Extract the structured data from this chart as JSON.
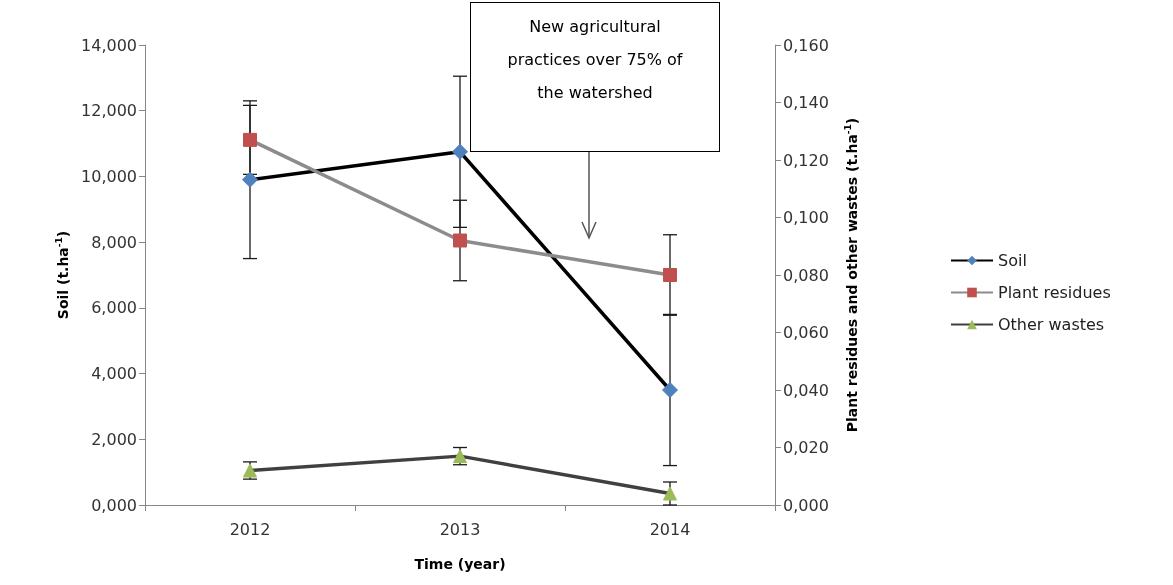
{
  "chart_data": {
    "type": "line",
    "xlabel": "Time (year)",
    "ylabel": "Soil (t.ha$^{-1}$)",
    "y2label": "Plant residues and other wastes (t.ha$^{-1}$)",
    "categories": [
      "2012",
      "2013",
      "2014"
    ],
    "series": [
      {
        "name": "Soil",
        "color": "#000000",
        "colors": [
          "#4f81bd",
          "#4f81bd",
          "#4f81bd"
        ],
        "marker": "diamond",
        "values": [
          9.9,
          10.75,
          3.5
        ],
        "errors": [
          2.4,
          2.3,
          2.3
        ]
      },
      {
        "name": "Plant residues",
        "color": "#8c8c8c",
        "colors": [
          "#c0504d",
          "#c0504d",
          "#c0504d"
        ],
        "marker": "square",
        "axis": "y2",
        "values": [
          0.127,
          0.092,
          0.08
        ],
        "errors": [
          0.012,
          0.014,
          0.014
        ]
      },
      {
        "name": "Other wastes",
        "color": "#404040",
        "colors": [
          "#9bbb59",
          "#9bbb59",
          "#9bbb59"
        ],
        "marker": "triangle",
        "axis": "y2",
        "values": [
          0.012,
          0.017,
          0.004
        ],
        "errors": [
          0.003,
          0.003,
          0.004
        ]
      }
    ],
    "ylim": [
      0,
      14
    ],
    "yticks": [
      {
        "value": 0,
        "label": "0,000"
      },
      {
        "value": 2,
        "label": "2,000"
      },
      {
        "value": 4,
        "label": "4,000"
      },
      {
        "value": 6,
        "label": "6,000"
      },
      {
        "value": 8,
        "label": "8,000"
      },
      {
        "value": 10,
        "label": "10,000"
      },
      {
        "value": 12,
        "label": "12,000"
      },
      {
        "value": 14,
        "label": "14,000"
      }
    ],
    "y2lim": [
      0,
      0.16
    ],
    "y2ticks": [
      {
        "value": 0,
        "label": "0,000"
      },
      {
        "value": 0.02,
        "label": "0,020"
      },
      {
        "value": 0.04,
        "label": "0,040"
      },
      {
        "value": 0.06,
        "label": "0,060"
      },
      {
        "value": 0.08,
        "label": "0,080"
      },
      {
        "value": 0.1,
        "label": "0,100"
      },
      {
        "value": 0.12,
        "label": "0,120"
      },
      {
        "value": 0.14,
        "label": "0,140"
      },
      {
        "value": 0.16,
        "label": "0,160"
      }
    ],
    "annotations": [
      "New agricultural practices over 75% of the watershed"
    ],
    "grid": false,
    "legend": "right"
  }
}
